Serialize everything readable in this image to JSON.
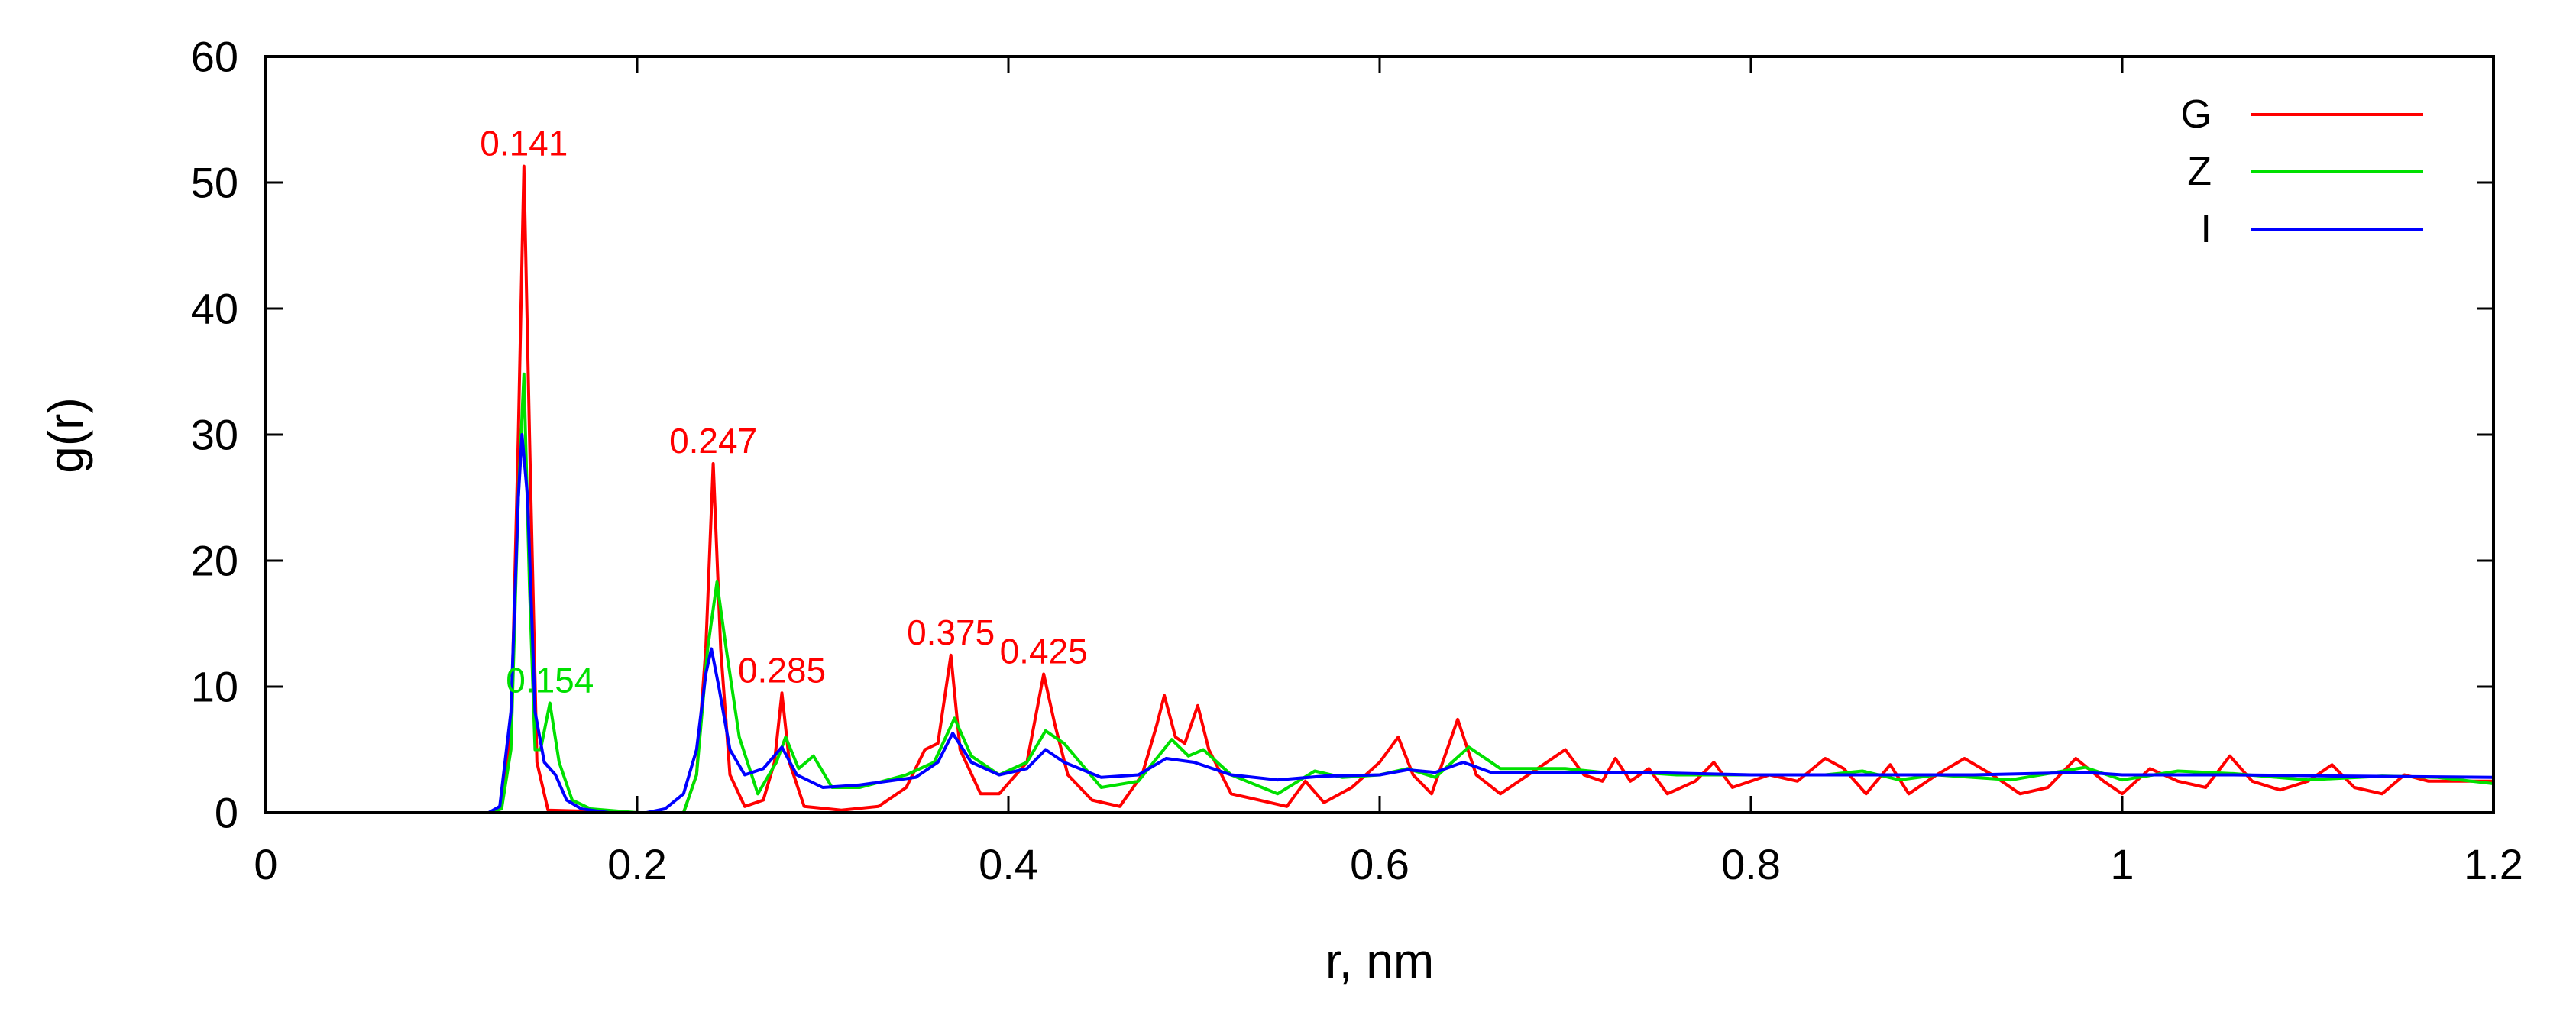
{
  "chart_data": {
    "type": "line",
    "title": "",
    "xlabel": "r, nm",
    "ylabel": "g(r)",
    "xlim": [
      0,
      1.2
    ],
    "ylim": [
      0,
      60
    ],
    "xticks": [
      0,
      0.2,
      0.4,
      0.6,
      0.8,
      1.0,
      1.2
    ],
    "xtick_labels": [
      "0",
      "0.2",
      "0.4",
      "0.6",
      "0.8",
      "1",
      "1.2"
    ],
    "yticks": [
      0,
      10,
      20,
      30,
      40,
      50,
      60
    ],
    "ytick_labels": [
      "0",
      "10",
      "20",
      "30",
      "40",
      "50",
      "60"
    ],
    "grid": false,
    "legend_position": "top-right",
    "series": [
      {
        "name": "G",
        "color": "#ff0000",
        "points": [
          [
            0,
            0
          ],
          [
            0.12,
            0
          ],
          [
            0.126,
            0.3
          ],
          [
            0.132,
            6
          ],
          [
            0.136,
            30
          ],
          [
            0.139,
            51.3
          ],
          [
            0.142,
            30
          ],
          [
            0.146,
            4
          ],
          [
            0.152,
            0.2
          ],
          [
            0.2,
            0
          ],
          [
            0.225,
            0
          ],
          [
            0.232,
            3
          ],
          [
            0.237,
            13
          ],
          [
            0.241,
            27.7
          ],
          [
            0.245,
            13
          ],
          [
            0.25,
            3
          ],
          [
            0.258,
            0.5
          ],
          [
            0.268,
            1
          ],
          [
            0.274,
            4
          ],
          [
            0.278,
            9.5
          ],
          [
            0.282,
            4
          ],
          [
            0.29,
            0.5
          ],
          [
            0.31,
            0.2
          ],
          [
            0.33,
            0.5
          ],
          [
            0.345,
            2
          ],
          [
            0.355,
            5
          ],
          [
            0.362,
            5.5
          ],
          [
            0.369,
            12.5
          ],
          [
            0.374,
            5
          ],
          [
            0.385,
            1.5
          ],
          [
            0.395,
            1.5
          ],
          [
            0.41,
            4
          ],
          [
            0.419,
            11
          ],
          [
            0.425,
            7
          ],
          [
            0.432,
            3
          ],
          [
            0.445,
            1
          ],
          [
            0.46,
            0.5
          ],
          [
            0.472,
            3
          ],
          [
            0.48,
            7
          ],
          [
            0.484,
            9.3
          ],
          [
            0.49,
            6
          ],
          [
            0.495,
            5.5
          ],
          [
            0.502,
            8.5
          ],
          [
            0.508,
            5
          ],
          [
            0.52,
            1.5
          ],
          [
            0.535,
            1
          ],
          [
            0.55,
            0.5
          ],
          [
            0.56,
            2.5
          ],
          [
            0.57,
            0.8
          ],
          [
            0.585,
            2
          ],
          [
            0.6,
            4
          ],
          [
            0.61,
            6
          ],
          [
            0.618,
            3
          ],
          [
            0.628,
            1.5
          ],
          [
            0.642,
            7.4
          ],
          [
            0.652,
            3
          ],
          [
            0.665,
            1.5
          ],
          [
            0.685,
            3.5
          ],
          [
            0.7,
            5
          ],
          [
            0.71,
            3
          ],
          [
            0.72,
            2.5
          ],
          [
            0.727,
            4.3
          ],
          [
            0.735,
            2.5
          ],
          [
            0.745,
            3.5
          ],
          [
            0.755,
            1.5
          ],
          [
            0.77,
            2.5
          ],
          [
            0.78,
            4
          ],
          [
            0.79,
            2
          ],
          [
            0.81,
            3
          ],
          [
            0.825,
            2.5
          ],
          [
            0.84,
            4.3
          ],
          [
            0.85,
            3.5
          ],
          [
            0.862,
            1.5
          ],
          [
            0.875,
            3.8
          ],
          [
            0.885,
            1.5
          ],
          [
            0.9,
            3
          ],
          [
            0.915,
            4.3
          ],
          [
            0.93,
            3
          ],
          [
            0.945,
            1.5
          ],
          [
            0.96,
            2
          ],
          [
            0.975,
            4.3
          ],
          [
            0.99,
            2.5
          ],
          [
            1.0,
            1.5
          ],
          [
            1.015,
            3.5
          ],
          [
            1.03,
            2.5
          ],
          [
            1.045,
            2
          ],
          [
            1.058,
            4.5
          ],
          [
            1.07,
            2.5
          ],
          [
            1.085,
            1.8
          ],
          [
            1.1,
            2.5
          ],
          [
            1.113,
            3.8
          ],
          [
            1.125,
            2
          ],
          [
            1.14,
            1.5
          ],
          [
            1.152,
            3
          ],
          [
            1.165,
            2.5
          ],
          [
            1.18,
            2.5
          ],
          [
            1.2,
            2.5
          ]
        ]
      },
      {
        "name": "Z",
        "color": "#00e000",
        "points": [
          [
            0,
            0
          ],
          [
            0.12,
            0
          ],
          [
            0.127,
            0.3
          ],
          [
            0.132,
            5
          ],
          [
            0.136,
            25
          ],
          [
            0.139,
            34.8
          ],
          [
            0.142,
            18
          ],
          [
            0.145,
            5
          ],
          [
            0.148,
            5
          ],
          [
            0.153,
            8.7
          ],
          [
            0.158,
            4
          ],
          [
            0.165,
            1
          ],
          [
            0.175,
            0.3
          ],
          [
            0.2,
            0
          ],
          [
            0.225,
            0
          ],
          [
            0.232,
            3
          ],
          [
            0.238,
            13
          ],
          [
            0.243,
            18.3
          ],
          [
            0.248,
            13
          ],
          [
            0.255,
            6
          ],
          [
            0.265,
            1.5
          ],
          [
            0.275,
            4
          ],
          [
            0.28,
            6
          ],
          [
            0.287,
            3.5
          ],
          [
            0.295,
            4.5
          ],
          [
            0.305,
            2
          ],
          [
            0.32,
            2
          ],
          [
            0.345,
            3
          ],
          [
            0.36,
            4
          ],
          [
            0.371,
            7.5
          ],
          [
            0.38,
            4.5
          ],
          [
            0.395,
            3
          ],
          [
            0.41,
            4
          ],
          [
            0.42,
            6.5
          ],
          [
            0.43,
            5.5
          ],
          [
            0.45,
            2
          ],
          [
            0.47,
            2.5
          ],
          [
            0.488,
            5.8
          ],
          [
            0.497,
            4.5
          ],
          [
            0.505,
            5
          ],
          [
            0.52,
            3
          ],
          [
            0.545,
            1.5
          ],
          [
            0.565,
            3.3
          ],
          [
            0.58,
            2.8
          ],
          [
            0.6,
            3
          ],
          [
            0.615,
            3.5
          ],
          [
            0.63,
            2.8
          ],
          [
            0.648,
            5.2
          ],
          [
            0.665,
            3.5
          ],
          [
            0.7,
            3.5
          ],
          [
            0.72,
            3.2
          ],
          [
            0.74,
            3.2
          ],
          [
            0.76,
            3
          ],
          [
            0.8,
            3
          ],
          [
            0.84,
            3
          ],
          [
            0.86,
            3.3
          ],
          [
            0.88,
            2.6
          ],
          [
            0.9,
            3
          ],
          [
            0.94,
            2.6
          ],
          [
            0.98,
            3.6
          ],
          [
            1.0,
            2.6
          ],
          [
            1.03,
            3.3
          ],
          [
            1.06,
            3.1
          ],
          [
            1.1,
            2.6
          ],
          [
            1.14,
            2.9
          ],
          [
            1.17,
            2.8
          ],
          [
            1.2,
            2.3
          ]
        ]
      },
      {
        "name": "I",
        "color": "#0000ff",
        "points": [
          [
            0,
            0
          ],
          [
            0.12,
            0
          ],
          [
            0.126,
            0.5
          ],
          [
            0.132,
            8
          ],
          [
            0.136,
            25
          ],
          [
            0.138,
            30
          ],
          [
            0.141,
            25
          ],
          [
            0.145,
            8
          ],
          [
            0.15,
            4
          ],
          [
            0.156,
            3
          ],
          [
            0.162,
            1
          ],
          [
            0.17,
            0.3
          ],
          [
            0.185,
            0
          ],
          [
            0.205,
            0
          ],
          [
            0.215,
            0.3
          ],
          [
            0.225,
            1.5
          ],
          [
            0.232,
            5
          ],
          [
            0.237,
            11
          ],
          [
            0.24,
            13
          ],
          [
            0.244,
            10
          ],
          [
            0.25,
            5
          ],
          [
            0.258,
            3
          ],
          [
            0.268,
            3.5
          ],
          [
            0.278,
            5.2
          ],
          [
            0.286,
            3
          ],
          [
            0.3,
            2
          ],
          [
            0.32,
            2.2
          ],
          [
            0.35,
            2.8
          ],
          [
            0.362,
            4
          ],
          [
            0.37,
            6.3
          ],
          [
            0.38,
            4
          ],
          [
            0.395,
            3
          ],
          [
            0.41,
            3.5
          ],
          [
            0.42,
            5
          ],
          [
            0.43,
            4
          ],
          [
            0.45,
            2.8
          ],
          [
            0.47,
            3
          ],
          [
            0.485,
            4.3
          ],
          [
            0.5,
            4
          ],
          [
            0.52,
            3
          ],
          [
            0.545,
            2.6
          ],
          [
            0.57,
            2.9
          ],
          [
            0.6,
            3
          ],
          [
            0.615,
            3.4
          ],
          [
            0.63,
            3.2
          ],
          [
            0.645,
            4
          ],
          [
            0.66,
            3.2
          ],
          [
            0.7,
            3.2
          ],
          [
            0.74,
            3.2
          ],
          [
            0.8,
            3
          ],
          [
            0.86,
            3
          ],
          [
            0.92,
            3
          ],
          [
            0.98,
            3.2
          ],
          [
            1.0,
            3
          ],
          [
            1.06,
            3
          ],
          [
            1.12,
            2.9
          ],
          [
            1.2,
            2.8
          ]
        ]
      }
    ],
    "annotations": [
      {
        "text": "0.141",
        "x": 0.139,
        "y": 51.3,
        "color": "#ff0000"
      },
      {
        "text": "0.154",
        "x": 0.153,
        "y": 8.7,
        "color": "#00e000"
      },
      {
        "text": "0.247",
        "x": 0.241,
        "y": 27.7,
        "color": "#ff0000"
      },
      {
        "text": "0.285",
        "x": 0.278,
        "y": 9.5,
        "color": "#ff0000"
      },
      {
        "text": "0.375",
        "x": 0.369,
        "y": 12.5,
        "color": "#ff0000"
      },
      {
        "text": "0.425",
        "x": 0.419,
        "y": 11.0,
        "color": "#ff0000"
      }
    ]
  }
}
